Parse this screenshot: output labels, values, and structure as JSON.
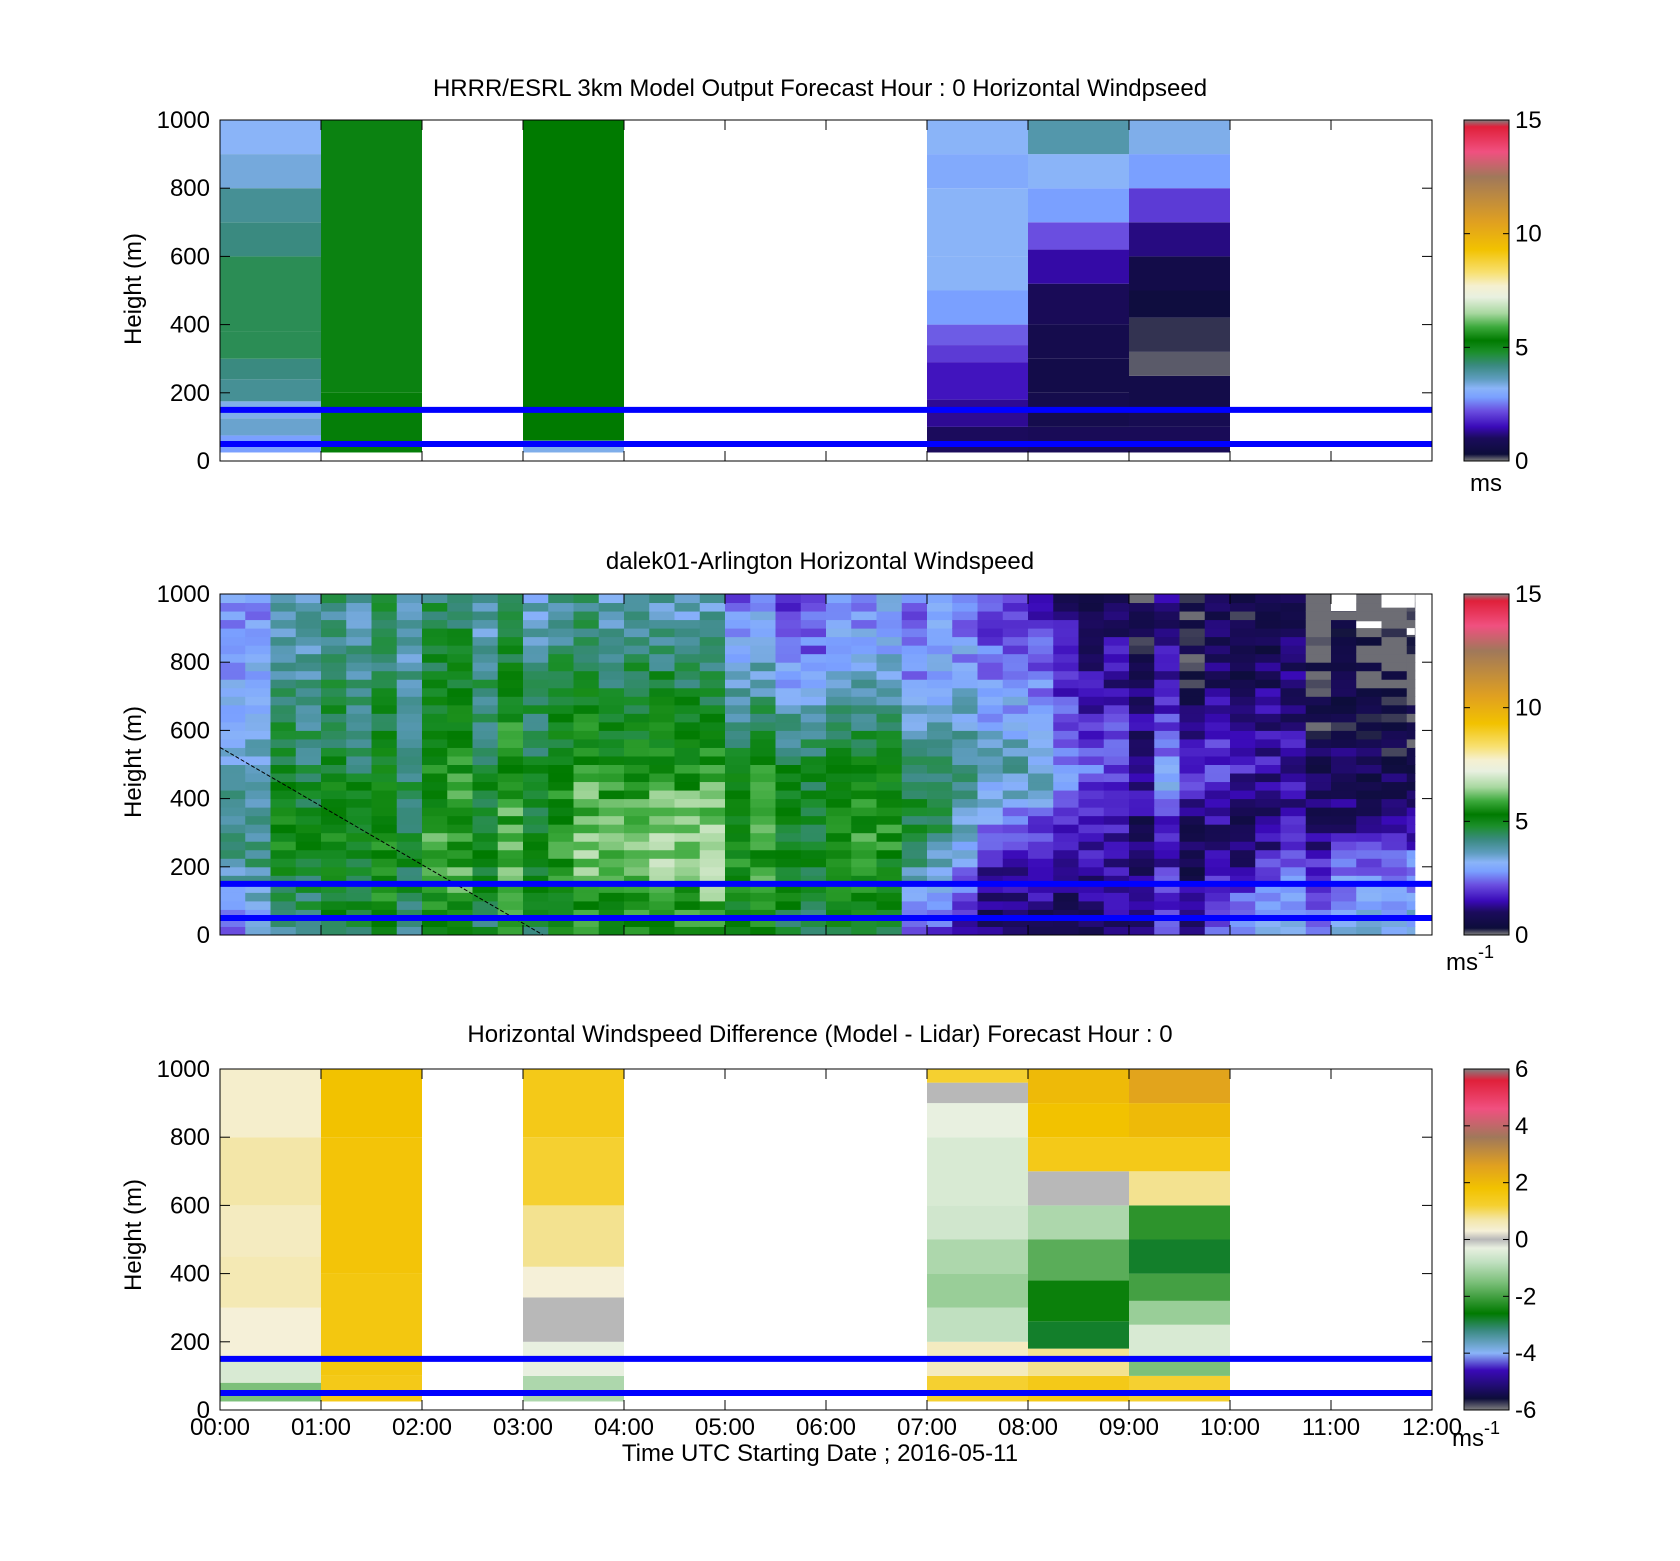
{
  "figure": {
    "xlabel": "Time UTC  Starting Date ; 2016-05-11",
    "x_tick_labels": [
      "00:00",
      "01:00",
      "02:00",
      "03:00",
      "04:00",
      "05:00",
      "06:00",
      "07:00",
      "08:00",
      "09:00",
      "10:00",
      "11:00",
      "12:00"
    ],
    "overlay_lines_height_m": [
      150,
      50
    ],
    "overlay_line_color": "#0000ff"
  },
  "chart_data": [
    {
      "type": "heatmap",
      "title": "HRRR/ESRL 3km Model Output   Forecast Hour : 0 Horizontal Windpseed",
      "ylabel": "Height (m)",
      "ylim": [
        0,
        1000
      ],
      "y_ticks": [
        0,
        200,
        400,
        600,
        800,
        1000
      ],
      "xlim": [
        0,
        12
      ],
      "colorbar": {
        "ticks": [
          0,
          5,
          10,
          15
        ],
        "unit": "ms",
        "range": [
          0,
          15
        ]
      },
      "available_hours": [
        [
          0,
          1
        ],
        [
          1,
          2
        ],
        [
          3,
          4
        ],
        [
          7,
          8
        ],
        [
          8,
          9
        ],
        [
          9,
          10
        ]
      ],
      "bottom_m": 25,
      "columns": [
        {
          "start": 0,
          "end": 1,
          "cells": [
            [
              25,
              75,
              2.8
            ],
            [
              75,
              125,
              3.5
            ],
            [
              125,
              175,
              3.3
            ],
            [
              175,
              240,
              4.0
            ],
            [
              240,
              300,
              4.2
            ],
            [
              300,
              380,
              4.5
            ],
            [
              380,
              600,
              4.5
            ],
            [
              600,
              700,
              4.2
            ],
            [
              700,
              800,
              4.0
            ],
            [
              800,
              900,
              3.4
            ],
            [
              900,
              1000,
              3.2
            ]
          ]
        },
        {
          "start": 1,
          "end": 2,
          "cells": [
            [
              25,
              200,
              5.2
            ],
            [
              200,
              1000,
              5.1
            ]
          ]
        },
        {
          "start": 3,
          "end": 4,
          "cells": [
            [
              25,
              60,
              3.3
            ],
            [
              60,
              1000,
              5.3
            ]
          ]
        },
        {
          "start": 7,
          "end": 8,
          "cells": [
            [
              25,
              100,
              1.0
            ],
            [
              100,
              180,
              1.3
            ],
            [
              180,
              290,
              1.6
            ],
            [
              290,
              340,
              2.0
            ],
            [
              340,
              400,
              2.3
            ],
            [
              400,
              500,
              2.8
            ],
            [
              500,
              600,
              3.2
            ],
            [
              600,
              800,
              3.2
            ],
            [
              800,
              900,
              3.0
            ],
            [
              900,
              1000,
              3.2
            ]
          ]
        },
        {
          "start": 8,
          "end": 9,
          "cells": [
            [
              25,
              100,
              0.9
            ],
            [
              100,
              200,
              0.7
            ],
            [
              200,
              300,
              0.6
            ],
            [
              300,
              400,
              0.7
            ],
            [
              400,
              520,
              0.9
            ],
            [
              520,
              620,
              1.4
            ],
            [
              620,
              700,
              2.2
            ],
            [
              700,
              800,
              2.8
            ],
            [
              800,
              900,
              3.2
            ],
            [
              900,
              1000,
              3.8
            ]
          ]
        },
        {
          "start": 9,
          "end": 10,
          "cells": [
            [
              25,
              100,
              0.9
            ],
            [
              100,
              150,
              0.8
            ],
            [
              150,
              250,
              0.6
            ],
            [
              250,
              320,
              0.1
            ],
            [
              320,
              420,
              0.2
            ],
            [
              420,
              500,
              0.4
            ],
            [
              500,
              600,
              0.6
            ],
            [
              600,
              700,
              1.2
            ],
            [
              700,
              800,
              2.0
            ],
            [
              800,
              900,
              2.8
            ],
            [
              900,
              1000,
              3.3
            ]
          ]
        }
      ]
    },
    {
      "type": "heatmap",
      "title": "dalek01-Arlington  Horizontal Windspeed",
      "ylabel": "Height (m)",
      "ylim": [
        0,
        1000
      ],
      "y_ticks": [
        0,
        200,
        400,
        600,
        800,
        1000
      ],
      "xlim": [
        0,
        12
      ],
      "colorbar": {
        "ticks": [
          0,
          5,
          10,
          15
        ],
        "unit": "ms-1",
        "unit_base": "ms",
        "unit_exp": "-1",
        "range": [
          0,
          15
        ]
      },
      "data_extent_hours": [
        0,
        11.83
      ],
      "time_step_hours": 0.25,
      "profile_anchor_hours": [
        0.0,
        1.5,
        3.0,
        4.5,
        5.5,
        6.5,
        7.0,
        7.5,
        8.0,
        8.5,
        9.0,
        9.5,
        10.0,
        10.5,
        11.0,
        11.83
      ],
      "profile_anchor_heights_m": [
        0,
        100,
        200,
        300,
        400,
        500,
        600,
        700,
        800,
        900,
        1000
      ],
      "profile_values": [
        [
          3.0,
          3.5,
          4.2,
          4.5,
          4.2,
          3.8,
          3.5,
          3.2,
          3.0,
          3.0,
          3.2
        ],
        [
          4.5,
          5.0,
          5.2,
          5.2,
          5.0,
          4.8,
          4.6,
          4.5,
          4.2,
          4.0,
          4.0
        ],
        [
          5.0,
          5.2,
          5.5,
          5.5,
          5.3,
          5.2,
          5.0,
          4.8,
          4.5,
          4.2,
          4.0
        ],
        [
          5.0,
          5.5,
          6.0,
          6.2,
          5.8,
          5.2,
          4.8,
          4.5,
          4.0,
          3.5,
          3.2
        ],
        [
          5.0,
          5.5,
          5.5,
          5.5,
          5.5,
          5.2,
          4.5,
          3.8,
          3.2,
          2.8,
          2.5
        ],
        [
          4.5,
          5.0,
          5.2,
          5.3,
          5.2,
          4.8,
          4.2,
          3.5,
          2.8,
          2.5,
          2.4
        ],
        [
          2.5,
          3.0,
          4.0,
          5.0,
          5.0,
          4.5,
          4.0,
          3.5,
          3.0,
          3.0,
          3.0
        ],
        [
          1.5,
          2.0,
          2.5,
          3.5,
          4.0,
          4.2,
          4.0,
          3.5,
          3.2,
          3.0,
          2.8
        ],
        [
          1.0,
          1.2,
          1.5,
          2.0,
          3.5,
          4.0,
          3.5,
          3.0,
          2.5,
          2.2,
          2.0
        ],
        [
          1.0,
          1.2,
          1.5,
          1.5,
          2.0,
          2.5,
          2.0,
          1.8,
          1.5,
          1.2,
          1.0
        ],
        [
          0.8,
          1.2,
          1.2,
          1.0,
          1.5,
          1.8,
          1.5,
          1.2,
          1.0,
          0.8,
          0.7
        ],
        [
          1.5,
          1.5,
          1.2,
          1.0,
          2.5,
          2.5,
          1.5,
          1.2,
          1.0,
          0.8,
          0.6
        ],
        [
          2.5,
          2.5,
          1.5,
          1.0,
          1.5,
          2.0,
          1.5,
          1.2,
          1.0,
          0.7,
          0.5
        ],
        [
          3.0,
          2.8,
          2.0,
          1.2,
          1.2,
          1.5,
          1.2,
          1.0,
          0.8,
          0.6,
          0.4
        ],
        [
          3.5,
          3.0,
          2.5,
          1.5,
          1.2,
          1.2,
          1.0,
          0.8,
          0.6,
          0.4,
          0.3
        ],
        [
          4.0,
          3.5,
          3.5,
          2.0,
          1.5,
          1.2,
          1.0,
          0.8,
          0.5,
          0.3,
          0.2
        ]
      ],
      "missing_values": [
        [
          11.0,
          11.25,
          950,
          1000
        ],
        [
          11.5,
          11.83,
          960,
          1000
        ],
        [
          11.25,
          11.5,
          900,
          920
        ],
        [
          11.75,
          11.83,
          880,
          900
        ]
      ],
      "diagonal_line": {
        "from_hour": 0,
        "from_m": 550,
        "to_hour": 3.2,
        "to_m": 0,
        "color": "#000000"
      }
    },
    {
      "type": "heatmap",
      "title": "Horizontal Windspeed Difference (Model - Lidar) Forecast Hour : 0",
      "ylabel": "Height (m)",
      "ylim": [
        0,
        1000
      ],
      "y_ticks": [
        0,
        200,
        400,
        600,
        800,
        1000
      ],
      "xlim": [
        0,
        12
      ],
      "colorbar": {
        "ticks": [
          -6,
          -4,
          -2,
          0,
          2,
          4,
          6
        ],
        "unit": "ms-1",
        "unit_base": "ms",
        "unit_exp": "-1",
        "range": [
          -6,
          6
        ]
      },
      "bottom_m": 25,
      "columns": [
        {
          "start": 0,
          "end": 1,
          "cells": [
            [
              25,
              80,
              -1.5
            ],
            [
              80,
              150,
              -0.5
            ],
            [
              150,
              300,
              0.3
            ],
            [
              300,
              450,
              0.6
            ],
            [
              450,
              600,
              0.5
            ],
            [
              600,
              800,
              0.7
            ],
            [
              800,
              1000,
              0.4
            ]
          ]
        },
        {
          "start": 1,
          "end": 2,
          "cells": [
            [
              25,
              100,
              1.5
            ],
            [
              100,
              400,
              1.6
            ],
            [
              400,
              800,
              1.7
            ],
            [
              800,
              1000,
              1.8
            ]
          ]
        },
        {
          "start": 3,
          "end": 4,
          "cells": [
            [
              25,
              100,
              -1.0
            ],
            [
              100,
              200,
              -0.3
            ],
            [
              200,
              330,
              0.0
            ],
            [
              330,
              420,
              0.3
            ],
            [
              420,
              600,
              0.8
            ],
            [
              600,
              800,
              1.2
            ],
            [
              800,
              1000,
              1.5
            ]
          ]
        },
        {
          "start": 7,
          "end": 8,
          "cells": [
            [
              25,
              100,
              1.2
            ],
            [
              100,
              200,
              0.5
            ],
            [
              200,
              300,
              -0.8
            ],
            [
              300,
              400,
              -1.2
            ],
            [
              400,
              500,
              -1.0
            ],
            [
              500,
              600,
              -0.6
            ],
            [
              600,
              800,
              -0.5
            ],
            [
              800,
              900,
              -0.3
            ],
            [
              900,
              960,
              0.0
            ],
            [
              960,
              1000,
              1.2
            ]
          ]
        },
        {
          "start": 8,
          "end": 9,
          "cells": [
            [
              25,
              100,
              1.5
            ],
            [
              100,
              180,
              0.8
            ],
            [
              180,
              260,
              -2.8
            ],
            [
              260,
              380,
              -2.5
            ],
            [
              380,
              500,
              -1.8
            ],
            [
              500,
              600,
              -1.0
            ],
            [
              600,
              700,
              0.0
            ],
            [
              700,
              800,
              1.5
            ],
            [
              800,
              900,
              1.8
            ],
            [
              900,
              1000,
              2.0
            ]
          ]
        },
        {
          "start": 9,
          "end": 10,
          "cells": [
            [
              25,
              100,
              1.2
            ],
            [
              100,
              150,
              -1.5
            ],
            [
              150,
              250,
              -0.5
            ],
            [
              250,
              320,
              -1.2
            ],
            [
              320,
              400,
              -2.0
            ],
            [
              400,
              500,
              -2.8
            ],
            [
              500,
              600,
              -2.2
            ],
            [
              600,
              700,
              0.8
            ],
            [
              700,
              800,
              1.5
            ],
            [
              800,
              900,
              2.0
            ],
            [
              900,
              1000,
              2.5
            ]
          ]
        }
      ]
    }
  ]
}
